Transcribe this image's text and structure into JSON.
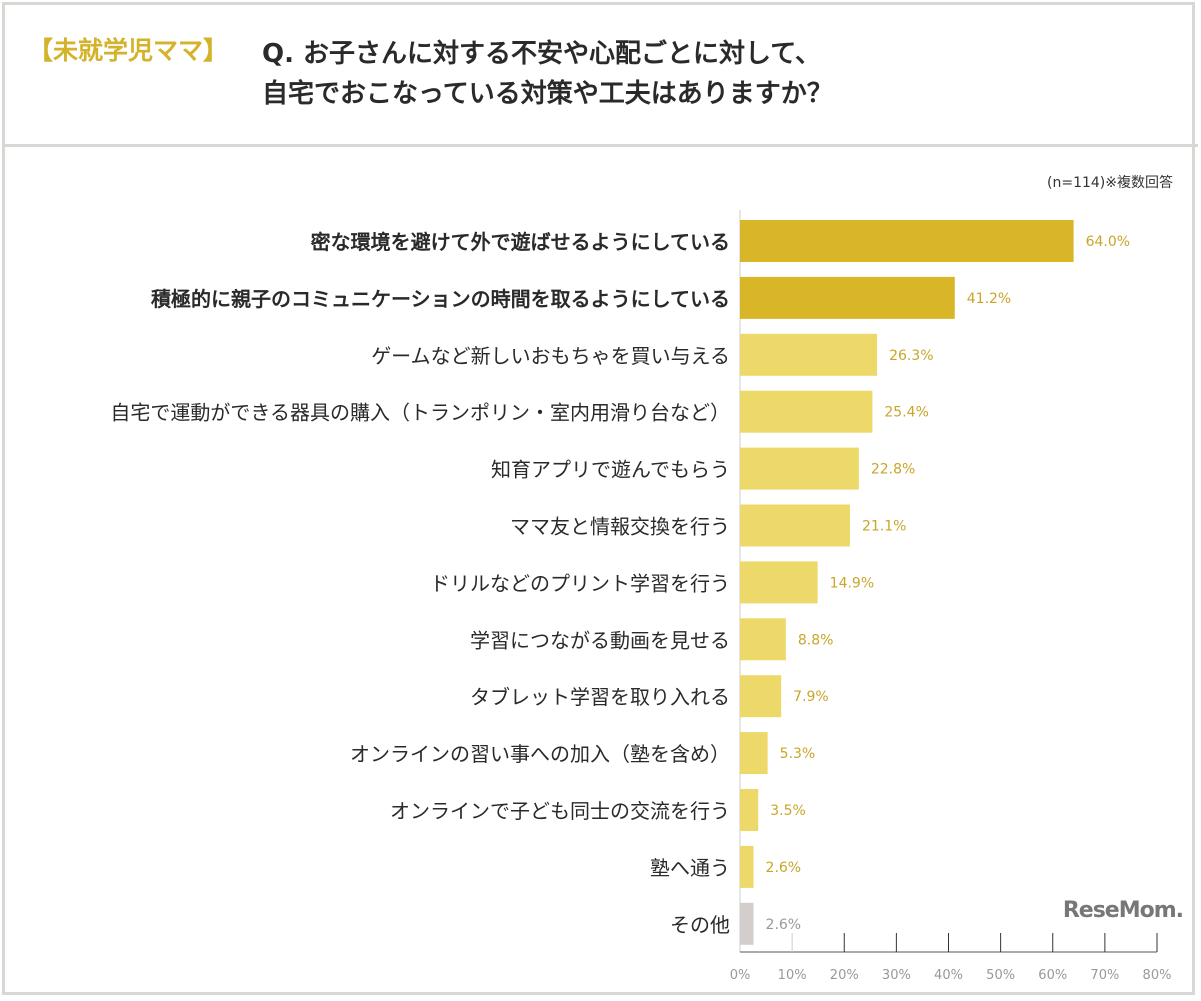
{
  "header": {
    "tag": "【未就学児ママ】",
    "title_line1": "Q. お子さんに対する不安や心配ごとに対して、",
    "title_line2": "自宅でおこなっている対策や工夫はありますか？"
  },
  "note": "(n=114)※複数回答",
  "logo": "ReseMom.",
  "colors": {
    "highlight": "#d9b628",
    "normal": "#ecd96a",
    "other": "#d3cdcb",
    "value_label": "#c9a62a",
    "other_label": "#999999"
  },
  "chart_data": {
    "type": "bar",
    "orientation": "horizontal",
    "categories": [
      "密な環境を避けて外で遊ばせるようにしている",
      "積極的に親子のコミュニケーションの時間を取るようにしている",
      "ゲームなど新しいおもちゃを買い与える",
      "自宅で運動ができる器具の購入（トランポリン・室内用滑り台など）",
      "知育アプリで遊んでもらう",
      "ママ友と情報交換を行う",
      "ドリルなどのプリント学習を行う",
      "学習につながる動画を見せる",
      "タブレット学習を取り入れる",
      "オンラインの習い事への加入（塾を含め）",
      "オンラインで子ども同士の交流を行う",
      "塾へ通う",
      "その他"
    ],
    "values": [
      64.0,
      41.2,
      26.3,
      25.4,
      22.8,
      21.1,
      14.9,
      8.8,
      7.9,
      5.3,
      3.5,
      2.6,
      2.6
    ],
    "value_labels": [
      "64.0%",
      "41.2%",
      "26.3%",
      "25.4%",
      "22.8%",
      "21.1%",
      "14.9%",
      "8.8%",
      "7.9%",
      "5.3%",
      "3.5%",
      "2.6%",
      "2.6%"
    ],
    "highlighted": [
      true,
      true,
      false,
      false,
      false,
      false,
      false,
      false,
      false,
      false,
      false,
      false,
      false
    ],
    "xlim": [
      0,
      80
    ],
    "xticks": [
      "0%",
      "10%",
      "20%",
      "30%",
      "40%",
      "50%",
      "60%",
      "70%",
      "80%"
    ],
    "grid": false
  }
}
